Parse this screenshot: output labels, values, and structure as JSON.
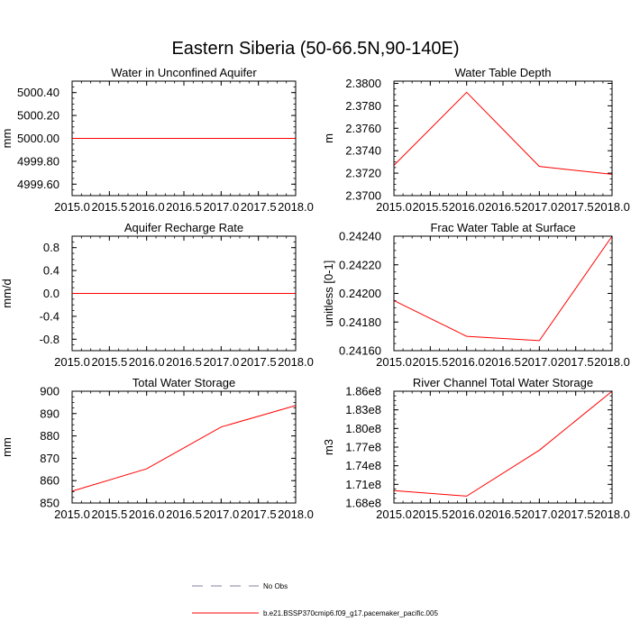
{
  "figure": {
    "title": "Eastern Siberia (50-66.5N,90-140E)"
  },
  "legend": {
    "entries": [
      {
        "label": "No Obs",
        "color": "#8080a0",
        "dash": true
      },
      {
        "label": "b.e21.BSSP370cmip6.f09_g17.pacemaker_pacific.005",
        "color": "#ff0000",
        "dash": false
      }
    ]
  },
  "chart_data": [
    {
      "type": "line",
      "title": "Water in Unconfined Aquifer",
      "ylabel": "mm",
      "x": [
        2015,
        2016,
        2017,
        2018
      ],
      "xlim": [
        2015,
        2018
      ],
      "xticks": [
        2015.0,
        2015.5,
        2016.0,
        2016.5,
        2017.0,
        2017.5,
        2018.0
      ],
      "xticklabels": [
        "2015.0",
        "2015.5",
        "2016.0",
        "2016.5",
        "2017.0",
        "2017.5",
        "2018.0"
      ],
      "ylim": [
        4999.5,
        5000.5
      ],
      "yticks": [
        4999.6,
        4999.8,
        5000.0,
        5000.2,
        5000.4
      ],
      "yticklabels": [
        "4999.60",
        "4999.80",
        "5000.00",
        "5000.20",
        "5000.40"
      ],
      "series": [
        {
          "values": [
            5000.0,
            5000.0,
            5000.0,
            5000.0
          ],
          "color": "#ff0000"
        }
      ]
    },
    {
      "type": "line",
      "title": "Water Table Depth",
      "ylabel": "m",
      "x": [
        2015,
        2016,
        2017,
        2018
      ],
      "xlim": [
        2015,
        2018
      ],
      "xticks": [
        2015.0,
        2015.5,
        2016.0,
        2016.5,
        2017.0,
        2017.5,
        2018.0
      ],
      "xticklabels": [
        "2015.0",
        "2015.5",
        "2016.0",
        "2016.5",
        "2017.0",
        "2017.5",
        "2018.0"
      ],
      "ylim": [
        2.37,
        2.3802
      ],
      "yticks": [
        2.37,
        2.372,
        2.374,
        2.376,
        2.378,
        2.38
      ],
      "yticklabels": [
        "2.3700",
        "2.3720",
        "2.3740",
        "2.3760",
        "2.3780",
        "2.3800"
      ],
      "series": [
        {
          "values": [
            2.3727,
            2.3792,
            2.3726,
            2.3719
          ],
          "color": "#ff0000"
        }
      ]
    },
    {
      "type": "line",
      "title": "Aquifer Recharge Rate",
      "ylabel": "mm/d",
      "x": [
        2015,
        2016,
        2017,
        2018
      ],
      "xlim": [
        2015,
        2018
      ],
      "xticks": [
        2015.0,
        2015.5,
        2016.0,
        2016.5,
        2017.0,
        2017.5,
        2018.0
      ],
      "xticklabels": [
        "2015.0",
        "2015.5",
        "2016.0",
        "2016.5",
        "2017.0",
        "2017.5",
        "2018.0"
      ],
      "ylim": [
        -1.0,
        1.0
      ],
      "yticks": [
        -0.8,
        -0.4,
        0.0,
        0.4,
        0.8
      ],
      "yticklabels": [
        "-0.8",
        "-0.4",
        "0.0",
        "0.4",
        "0.8"
      ],
      "series": [
        {
          "values": [
            0.0,
            0.0,
            0.0,
            0.0
          ],
          "color": "#ff0000"
        }
      ]
    },
    {
      "type": "line",
      "title": "Frac Water Table at Surface",
      "ylabel": "unitless [0-1]",
      "x": [
        2015,
        2016,
        2017,
        2018
      ],
      "xlim": [
        2015,
        2018
      ],
      "xticks": [
        2015.0,
        2015.5,
        2016.0,
        2016.5,
        2017.0,
        2017.5,
        2018.0
      ],
      "xticklabels": [
        "2015.0",
        "2015.5",
        "2016.0",
        "2016.5",
        "2017.0",
        "2017.5",
        "2018.0"
      ],
      "ylim": [
        0.2416,
        0.2424
      ],
      "yticks": [
        0.2416,
        0.2418,
        0.242,
        0.2422,
        0.2424
      ],
      "yticklabels": [
        "0.24160",
        "0.24180",
        "0.24200",
        "0.24220",
        "0.24240"
      ],
      "series": [
        {
          "values": [
            0.24195,
            0.2417,
            0.24167,
            0.2424
          ],
          "color": "#ff0000"
        }
      ]
    },
    {
      "type": "line",
      "title": "Total Water Storage",
      "ylabel": "mm",
      "x": [
        2015,
        2016,
        2017,
        2018
      ],
      "xlim": [
        2015,
        2018
      ],
      "xticks": [
        2015.0,
        2015.5,
        2016.0,
        2016.5,
        2017.0,
        2017.5,
        2018.0
      ],
      "xticklabels": [
        "2015.0",
        "2015.5",
        "2016.0",
        "2016.5",
        "2017.0",
        "2017.5",
        "2018.0"
      ],
      "ylim": [
        850,
        900
      ],
      "yticks": [
        850,
        860,
        870,
        880,
        890,
        900
      ],
      "yticklabels": [
        "850",
        "860",
        "870",
        "880",
        "890",
        "900"
      ],
      "series": [
        {
          "values": [
            855.3,
            865.3,
            884.0,
            893.6
          ],
          "color": "#ff0000"
        }
      ]
    },
    {
      "type": "line",
      "title": "River Channel Total Water Storage",
      "ylabel": "m3",
      "x": [
        2015,
        2016,
        2017,
        2018
      ],
      "xlim": [
        2015,
        2018
      ],
      "xticks": [
        2015.0,
        2015.5,
        2016.0,
        2016.5,
        2017.0,
        2017.5,
        2018.0
      ],
      "xticklabels": [
        "2015.0",
        "2015.5",
        "2016.0",
        "2016.5",
        "2017.0",
        "2017.5",
        "2018.0"
      ],
      "ylim": [
        168000000,
        186000000
      ],
      "yticks": [
        168000000,
        171000000,
        174000000,
        177000000,
        180000000,
        183000000,
        186000000
      ],
      "yticklabels": [
        "1.68e8",
        "1.71e8",
        "1.74e8",
        "1.77e8",
        "1.80e8",
        "1.83e8",
        "1.86e8"
      ],
      "series": [
        {
          "values": [
            170000000,
            169100000,
            176500000,
            186000000
          ],
          "color": "#ff0000"
        }
      ]
    }
  ]
}
